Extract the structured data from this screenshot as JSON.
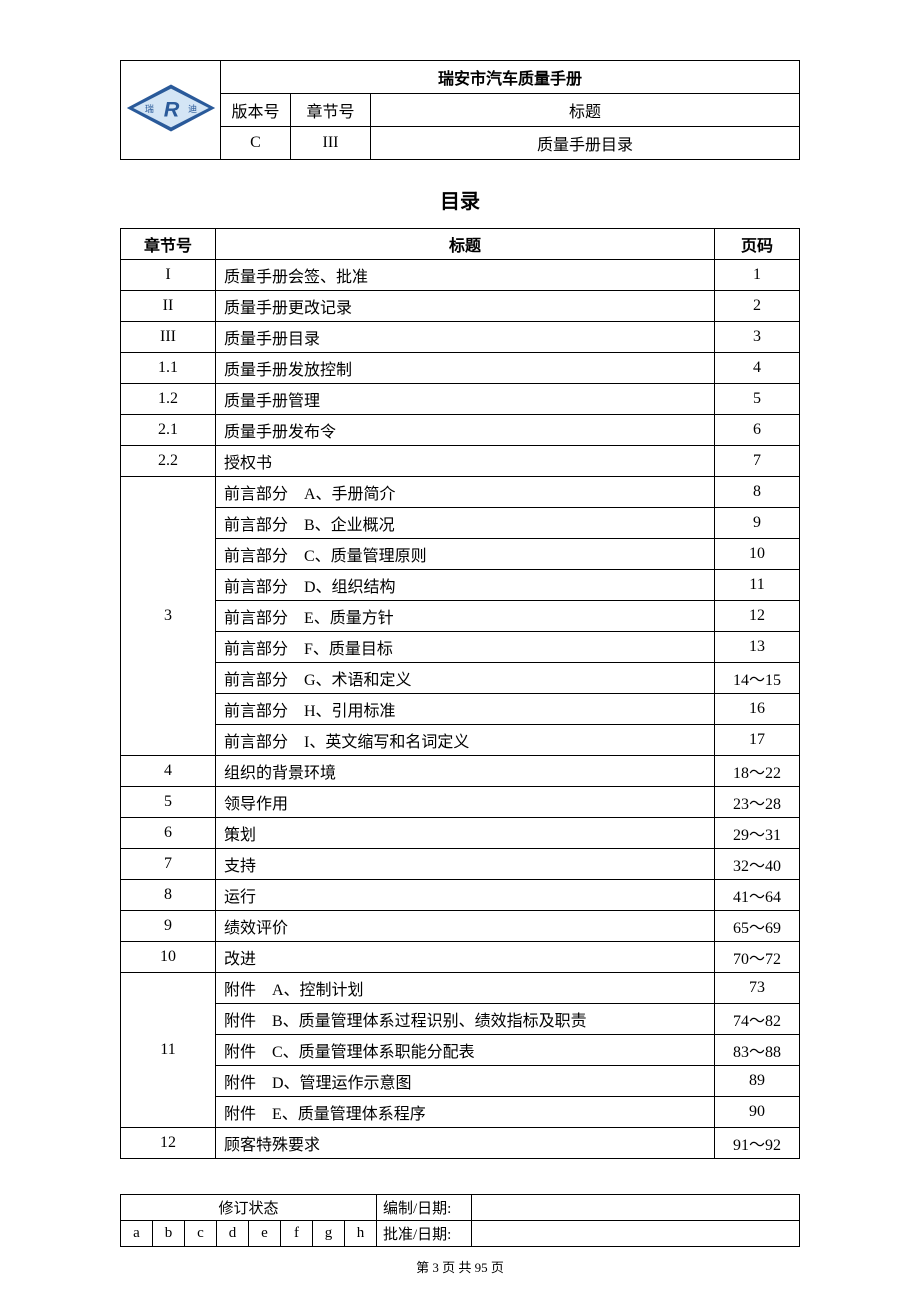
{
  "header": {
    "doc_title": "瑞安市汽车质量手册",
    "version_label": "版本号",
    "chapter_label": "章节号",
    "title_label": "标题",
    "version": "C",
    "chapter": "III",
    "title": "质量手册目录"
  },
  "logo": {
    "left_text": "瑞",
    "right_text": "迪",
    "center_letter": "R",
    "outer_color": "#2a5a9a",
    "inner_color": "#d4e5f5",
    "text_color": "#2a5a9a",
    "letter_color": "#2a5a9a"
  },
  "page_heading": "目录",
  "toc": {
    "head_chapter": "章节号",
    "head_title": "标题",
    "head_page": "页码",
    "sections": [
      {
        "chapter": "I",
        "rows": [
          {
            "title": "质量手册会签、批准",
            "page": "1"
          }
        ]
      },
      {
        "chapter": "II",
        "rows": [
          {
            "title": "质量手册更改记录",
            "page": "2"
          }
        ]
      },
      {
        "chapter": "III",
        "rows": [
          {
            "title": "质量手册目录",
            "page": "3"
          }
        ]
      },
      {
        "chapter": "1.1",
        "rows": [
          {
            "title": "质量手册发放控制",
            "page": "4"
          }
        ]
      },
      {
        "chapter": "1.2",
        "rows": [
          {
            "title": "质量手册管理",
            "page": "5"
          }
        ]
      },
      {
        "chapter": "2.1",
        "rows": [
          {
            "title": "质量手册发布令",
            "page": "6"
          }
        ]
      },
      {
        "chapter": "2.2",
        "rows": [
          {
            "title": "授权书",
            "page": "7"
          }
        ]
      },
      {
        "chapter": "3",
        "rows": [
          {
            "title": "前言部分　A、手册简介",
            "page": "8"
          },
          {
            "title": "前言部分　B、企业概况",
            "page": "9"
          },
          {
            "title": "前言部分　C、质量管理原则",
            "page": "10"
          },
          {
            "title": "前言部分　D、组织结构",
            "page": "11"
          },
          {
            "title": "前言部分　E、质量方针",
            "page": "12"
          },
          {
            "title": "前言部分　F、质量目标",
            "page": "13"
          },
          {
            "title": "前言部分　G、术语和定义",
            "page": "14～15"
          },
          {
            "title": "前言部分　H、引用标准",
            "page": "16"
          },
          {
            "title": "前言部分　I、英文缩写和名词定义",
            "page": "17"
          }
        ]
      },
      {
        "chapter": "4",
        "rows": [
          {
            "title": "组织的背景环境",
            "page": "18～22"
          }
        ]
      },
      {
        "chapter": "5",
        "rows": [
          {
            "title": "领导作用",
            "page": "23～28"
          }
        ]
      },
      {
        "chapter": "6",
        "rows": [
          {
            "title": "策划",
            "page": "29～31"
          }
        ]
      },
      {
        "chapter": "7",
        "rows": [
          {
            "title": "支持",
            "page": "32～40"
          }
        ]
      },
      {
        "chapter": "8",
        "rows": [
          {
            "title": "运行",
            "page": "41～64"
          }
        ]
      },
      {
        "chapter": "9",
        "rows": [
          {
            "title": "绩效评价",
            "page": "65～69"
          }
        ]
      },
      {
        "chapter": "10",
        "rows": [
          {
            "title": "改进",
            "page": "70～72"
          }
        ]
      },
      {
        "chapter": "11",
        "rows": [
          {
            "title": "附件　A、控制计划",
            "page": "73"
          },
          {
            "title": "附件　B、质量管理体系过程识别、绩效指标及职责",
            "page": "74～82"
          },
          {
            "title": "附件　C、质量管理体系职能分配表",
            "page": "83～88"
          },
          {
            "title": "附件　D、管理运作示意图",
            "page": "89"
          },
          {
            "title": "附件　E、质量管理体系程序",
            "page": "90"
          }
        ]
      },
      {
        "chapter": "12",
        "rows": [
          {
            "title": "顾客特殊要求",
            "page": "91～92"
          }
        ]
      }
    ]
  },
  "footer": {
    "rev_title": "修订状态",
    "rev_letters": [
      "a",
      "b",
      "c",
      "d",
      "e",
      "f",
      "g",
      "h"
    ],
    "prepared_label": "编制/日期:",
    "prepared_value": "",
    "approved_label": "批准/日期:",
    "approved_value": ""
  },
  "page_number": "第 3 页 共 95 页"
}
